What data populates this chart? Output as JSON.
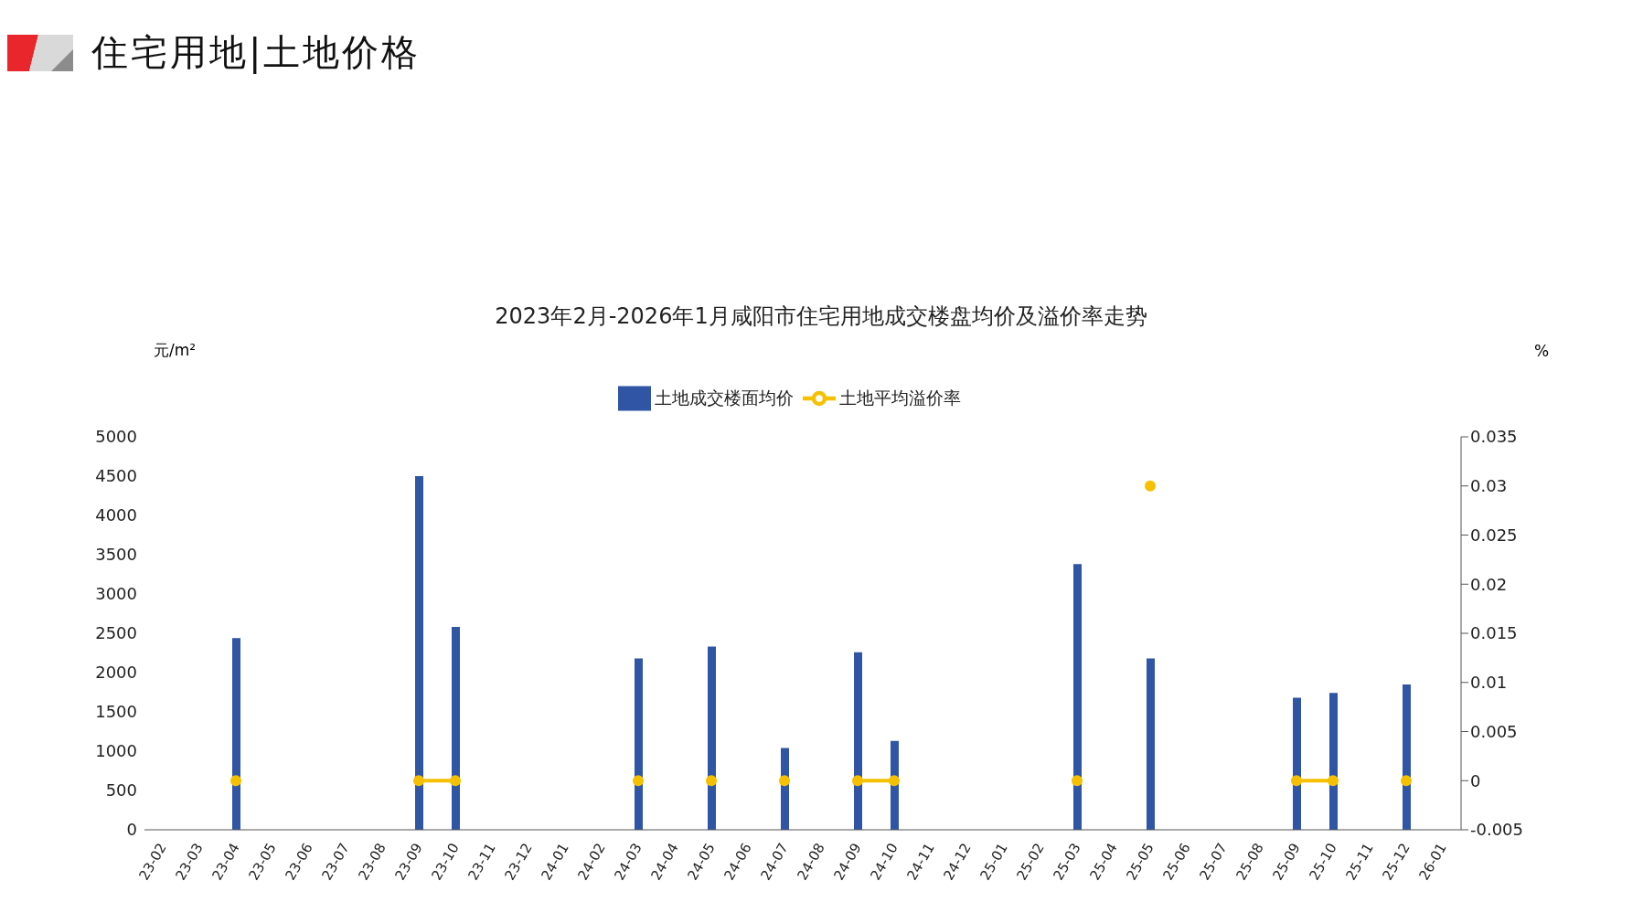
{
  "chart_data": {
    "type": "bar",
    "title": "住宅用地|土地价格",
    "subtitle": "2023年2月-2026年1月咸阳市住宅用地成交楼盘均价及溢价率走势",
    "ylabel": "元/m²",
    "y2label": "%",
    "categories": [
      "23-02",
      "23-03",
      "23-04",
      "23-05",
      "23-06",
      "23-07",
      "23-08",
      "23-09",
      "23-10",
      "23-11",
      "23-12",
      "24-01",
      "24-02",
      "24-03",
      "24-04",
      "24-05",
      "24-06",
      "24-07",
      "24-08",
      "24-09",
      "24-10",
      "24-11",
      "24-12",
      "25-01",
      "25-02",
      "25-03",
      "25-04",
      "25-05",
      "25-06",
      "25-07",
      "25-08",
      "25-09",
      "25-10",
      "25-11",
      "25-12",
      "26-01"
    ],
    "series": [
      {
        "name": "土地成交楼面均价",
        "color": "#2f55a4",
        "values": [
          null,
          null,
          2440,
          null,
          null,
          null,
          null,
          4500,
          2580,
          null,
          null,
          null,
          null,
          2180,
          null,
          2330,
          null,
          1040,
          null,
          2260,
          1130,
          null,
          null,
          null,
          null,
          3380,
          null,
          2180,
          null,
          null,
          null,
          1680,
          1740,
          null,
          1850,
          null
        ]
      },
      {
        "name": "土地平均溢价率",
        "type": "line",
        "axis": "y2",
        "color": "#f5c000",
        "values": [
          null,
          null,
          0,
          null,
          null,
          null,
          null,
          0,
          0,
          null,
          null,
          null,
          null,
          0,
          null,
          0,
          null,
          0,
          null,
          0,
          0,
          null,
          null,
          null,
          null,
          0,
          null,
          0.03,
          null,
          null,
          null,
          0,
          0,
          null,
          0,
          null
        ]
      }
    ],
    "ylim": [
      0,
      5000
    ],
    "yticks": [
      0,
      500,
      1000,
      1500,
      2000,
      2500,
      3000,
      3500,
      4000,
      4500,
      5000
    ],
    "y2lim": [
      -0.005,
      0.035
    ],
    "y2ticks": [
      -0.005,
      0,
      0.005,
      0.01,
      0.015,
      0.02,
      0.025,
      0.03,
      0.035
    ],
    "grid": false,
    "legend": "top",
    "marker": "circle",
    "line_style": "solid"
  }
}
